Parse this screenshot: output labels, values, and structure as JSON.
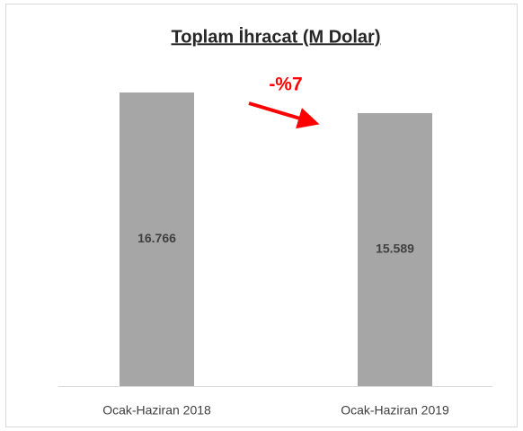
{
  "chart_data": {
    "type": "bar",
    "title": "Toplam İhracat (M Dolar)",
    "categories": [
      "Ocak-Haziran 2018",
      "Ocak-Haziran 2019"
    ],
    "values": [
      16766,
      15589
    ],
    "value_labels": [
      "16.766",
      "15.589"
    ],
    "color": "#a6a6a6",
    "annotations": [
      "-%7"
    ]
  }
}
